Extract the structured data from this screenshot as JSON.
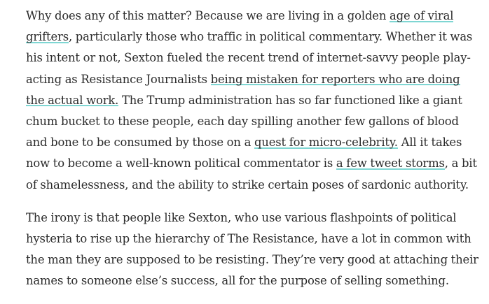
{
  "colors": {
    "text": "#2b2b2b",
    "link_underline": "#7fd6d3",
    "background": "#ffffff"
  },
  "paragraphs": [
    {
      "segments": [
        {
          "text": "Why does any of this matter? Because we are living in a golden "
        },
        {
          "text": "age of viral grifters",
          "link": true
        },
        {
          "text": ", particularly those who traffic in political commentary. Whether it was his intent or not, Sexton fueled the recent trend of internet-savvy people play-acting as Resistance Journalists "
        },
        {
          "text": "being mistaken for reporters who are doing the actual work.",
          "link": true
        },
        {
          "text": " The Trump administration has so far functioned like a giant chum bucket to these people, each day spilling another few gallons of blood and bone to be consumed by those on a "
        },
        {
          "text": "quest for micro-celebrity.",
          "link": true
        },
        {
          "text": " All it takes now to become a well-known political commentator is "
        },
        {
          "text": "a few tweet storms",
          "link": true
        },
        {
          "text": ", a bit of shamelessness, and the ability to strike certain poses of sardonic authority."
        }
      ]
    },
    {
      "segments": [
        {
          "text": "The irony is that people like Sexton, who use various flashpoints of political hysteria to rise up the hierarchy of The Resistance, have a lot in common with the man they are supposed to be resisting. They’re very good at attaching their names to someone else’s success, all for the purpose of selling something."
        }
      ]
    }
  ]
}
